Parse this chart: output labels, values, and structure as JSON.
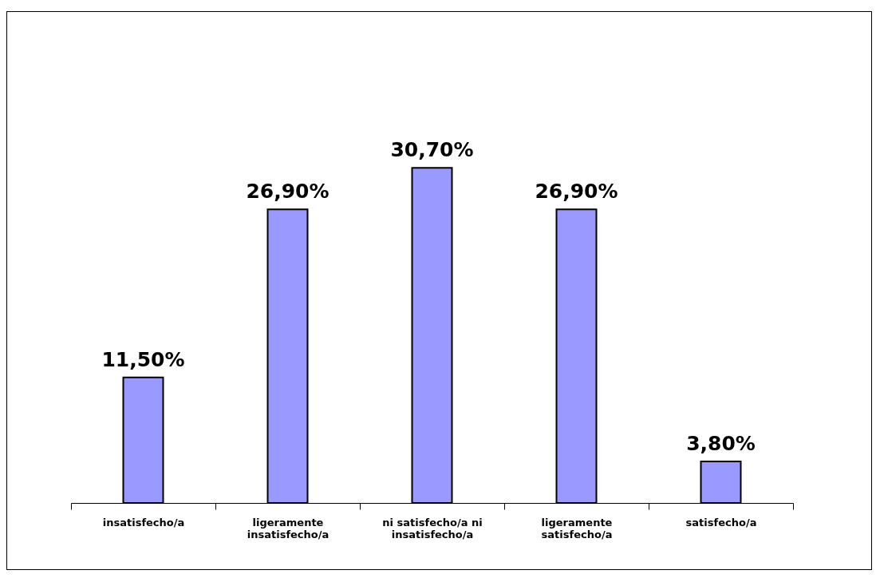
{
  "chart_data": {
    "type": "bar",
    "categories": [
      "insatisfecho/a",
      "ligeramente insatisfecho/a",
      "ni satisfecho/a ni insatisfecho/a",
      "ligeramente satisfecho/a",
      "satisfecho/a"
    ],
    "values": [
      11.5,
      26.9,
      30.7,
      26.9,
      3.8
    ],
    "value_labels": [
      "11,50%",
      "26,90%",
      "30,70%",
      "26,90%",
      "3,80%"
    ],
    "color": "#9999ff"
  }
}
